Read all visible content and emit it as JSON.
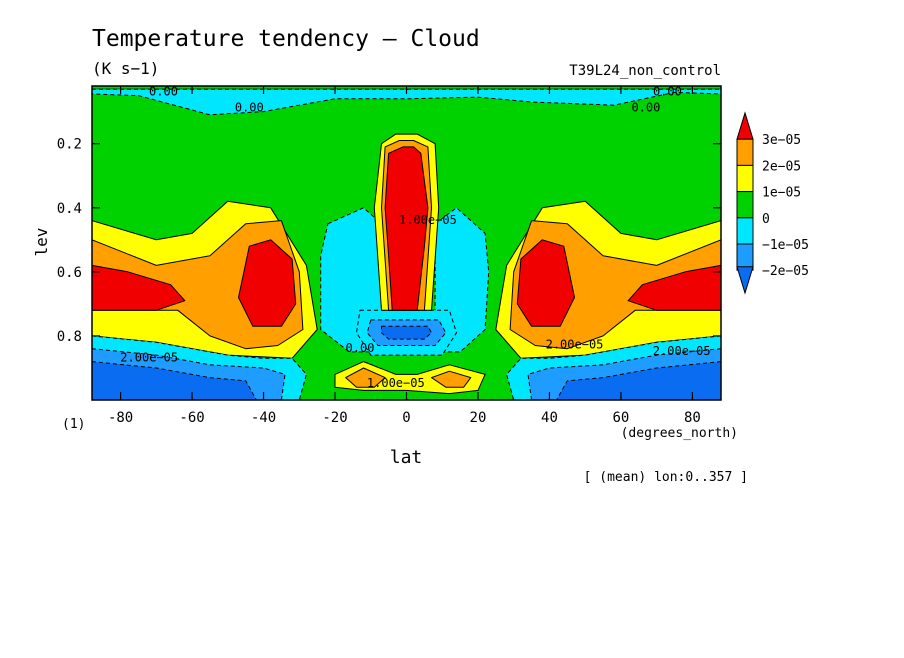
{
  "chart_data": {
    "type": "heatmap",
    "title": "Temperature tendency — Cloud",
    "units": "(K s−1)",
    "run_label": "T39L24_non_control",
    "xlabel": "lat",
    "x_units": "(degrees_north)",
    "ylabel": "lev",
    "y_units": "(1)",
    "footnote": "[ (mean) lon:0..357 ]",
    "xlim": [
      -88,
      88
    ],
    "ylim": [
      1.0,
      0.02
    ],
    "x_ticks": [
      -80,
      -60,
      -40,
      -20,
      0,
      20,
      40,
      60,
      80
    ],
    "x_tick_labels": [
      "-80",
      "-60",
      "-40",
      "-20",
      "0",
      "20",
      "40",
      "60",
      "80"
    ],
    "y_ticks": [
      0.2,
      0.4,
      0.6,
      0.8
    ],
    "y_tick_labels": [
      "0.2",
      "0.4",
      "0.6",
      "0.8"
    ],
    "colorbar": {
      "levels": [
        -2e-05,
        -1e-05,
        0,
        1e-05,
        2e-05,
        3e-05
      ],
      "labels": [
        "−2e−05",
        "−1e−05",
        "0",
        "1e−05",
        "2e−05",
        "3e−05"
      ],
      "colors": [
        "#0a6cf0",
        "#1e9cff",
        "#00e6ff",
        "#00d200",
        "#ffff00",
        "#ff9f00",
        "#f00000"
      ]
    },
    "fill_colors": {
      "minus2": "#0a6cf0",
      "minus1": "#1e9cff",
      "zero_neg": "#00e6ff",
      "zero_pos": "#00d200",
      "plus1": "#ffff00",
      "plus2": "#ff9f00",
      "plus3": "#f00000"
    },
    "contour_labels": [
      {
        "text": "0.00",
        "lat": -68,
        "lev": 0.05
      },
      {
        "text": "0.00",
        "lat": -44,
        "lev": 0.1
      },
      {
        "text": "0.00",
        "lat": 73,
        "lev": 0.05
      },
      {
        "text": "0.00",
        "lat": 67,
        "lev": 0.1
      },
      {
        "text": "0.00",
        "lat": -13,
        "lev": 0.85
      },
      {
        "text": "1.00e−05",
        "lat": -3,
        "lev": 0.96
      },
      {
        "text": "2.00e−05",
        "lat": 47,
        "lev": 0.84
      },
      {
        "text": "2.00e−05",
        "lat": 77,
        "lev": 0.86
      },
      {
        "text": "2.00e−05",
        "lat": -72,
        "lev": 0.88
      },
      {
        "text": "1.00e−05",
        "lat": 6,
        "lev": 0.45
      }
    ],
    "regions": [
      {
        "name": "top-thin-green",
        "class": "zero_pos",
        "pts": [
          [
            -88,
            0.02
          ],
          [
            88,
            0.02
          ],
          [
            88,
            0.03
          ],
          [
            -88,
            0.03
          ]
        ]
      },
      {
        "name": "top-cyan",
        "class": "zero_neg",
        "pts": [
          [
            -88,
            0.03
          ],
          [
            88,
            0.03
          ],
          [
            88,
            0.045
          ],
          [
            75,
            0.04
          ],
          [
            58,
            0.08
          ],
          [
            35,
            0.07
          ],
          [
            20,
            0.055
          ],
          [
            0,
            0.06
          ],
          [
            -20,
            0.06
          ],
          [
            -40,
            0.1
          ],
          [
            -55,
            0.11
          ],
          [
            -75,
            0.05
          ],
          [
            -88,
            0.045
          ]
        ]
      },
      {
        "name": "sh-yellow",
        "class": "plus1",
        "pts": [
          [
            -88,
            0.44
          ],
          [
            -70,
            0.5
          ],
          [
            -60,
            0.48
          ],
          [
            -50,
            0.38
          ],
          [
            -38,
            0.4
          ],
          [
            -28,
            0.58
          ],
          [
            -25,
            0.78
          ],
          [
            -32,
            0.87
          ],
          [
            -50,
            0.86
          ],
          [
            -70,
            0.82
          ],
          [
            -88,
            0.8
          ]
        ]
      },
      {
        "name": "sh-orange",
        "class": "plus2",
        "pts": [
          [
            -88,
            0.5
          ],
          [
            -70,
            0.58
          ],
          [
            -55,
            0.55
          ],
          [
            -45,
            0.45
          ],
          [
            -35,
            0.44
          ],
          [
            -30,
            0.6
          ],
          [
            -29,
            0.78
          ],
          [
            -36,
            0.83
          ],
          [
            -45,
            0.84
          ],
          [
            -55,
            0.8
          ],
          [
            -64,
            0.72
          ],
          [
            -75,
            0.72
          ],
          [
            -88,
            0.72
          ]
        ]
      },
      {
        "name": "sh-red-left",
        "class": "plus3",
        "pts": [
          [
            -88,
            0.58
          ],
          [
            -78,
            0.6
          ],
          [
            -66,
            0.64
          ],
          [
            -62,
            0.69
          ],
          [
            -70,
            0.72
          ],
          [
            -80,
            0.72
          ],
          [
            -88,
            0.72
          ]
        ]
      },
      {
        "name": "sh-red-right",
        "class": "plus3",
        "pts": [
          [
            -44,
            0.52
          ],
          [
            -38,
            0.5
          ],
          [
            -32,
            0.56
          ],
          [
            -31,
            0.7
          ],
          [
            -35,
            0.77
          ],
          [
            -43,
            0.77
          ],
          [
            -47,
            0.68
          ]
        ]
      },
      {
        "name": "nh-yellow",
        "class": "plus1",
        "pts": [
          [
            88,
            0.44
          ],
          [
            70,
            0.5
          ],
          [
            60,
            0.48
          ],
          [
            50,
            0.38
          ],
          [
            38,
            0.4
          ],
          [
            28,
            0.58
          ],
          [
            25,
            0.78
          ],
          [
            32,
            0.87
          ],
          [
            50,
            0.86
          ],
          [
            70,
            0.82
          ],
          [
            88,
            0.8
          ]
        ]
      },
      {
        "name": "nh-orange",
        "class": "plus2",
        "pts": [
          [
            88,
            0.5
          ],
          [
            70,
            0.58
          ],
          [
            55,
            0.55
          ],
          [
            45,
            0.45
          ],
          [
            35,
            0.44
          ],
          [
            30,
            0.6
          ],
          [
            29,
            0.78
          ],
          [
            36,
            0.83
          ],
          [
            45,
            0.84
          ],
          [
            55,
            0.8
          ],
          [
            64,
            0.72
          ],
          [
            75,
            0.72
          ],
          [
            88,
            0.72
          ]
        ]
      },
      {
        "name": "nh-red-right",
        "class": "plus3",
        "pts": [
          [
            88,
            0.58
          ],
          [
            78,
            0.6
          ],
          [
            66,
            0.64
          ],
          [
            62,
            0.69
          ],
          [
            70,
            0.72
          ],
          [
            80,
            0.72
          ],
          [
            88,
            0.72
          ]
        ]
      },
      {
        "name": "nh-red-left",
        "class": "plus3",
        "pts": [
          [
            44,
            0.52
          ],
          [
            38,
            0.5
          ],
          [
            32,
            0.56
          ],
          [
            31,
            0.7
          ],
          [
            35,
            0.77
          ],
          [
            43,
            0.77
          ],
          [
            47,
            0.68
          ]
        ]
      },
      {
        "name": "left-cyan-mid",
        "class": "zero_neg",
        "pts": [
          [
            -22,
            0.45
          ],
          [
            -12,
            0.4
          ],
          [
            -7,
            0.45
          ],
          [
            -7,
            0.85
          ],
          [
            -16,
            0.85
          ],
          [
            -24,
            0.78
          ],
          [
            -24,
            0.55
          ]
        ]
      },
      {
        "name": "right-cyan-mid",
        "class": "zero_neg",
        "pts": [
          [
            8,
            0.45
          ],
          [
            14,
            0.4
          ],
          [
            22,
            0.48
          ],
          [
            23,
            0.6
          ],
          [
            22,
            0.78
          ],
          [
            15,
            0.85
          ],
          [
            8,
            0.85
          ]
        ]
      },
      {
        "name": "center-cyan",
        "class": "zero_neg",
        "pts": [
          [
            -13,
            0.72
          ],
          [
            12,
            0.72
          ],
          [
            14,
            0.79
          ],
          [
            10,
            0.86
          ],
          [
            -10,
            0.86
          ],
          [
            -14,
            0.79
          ]
        ]
      },
      {
        "name": "center-blue",
        "class": "minus1",
        "pts": [
          [
            -10,
            0.75
          ],
          [
            9,
            0.75
          ],
          [
            11,
            0.79
          ],
          [
            8,
            0.83
          ],
          [
            -8,
            0.83
          ],
          [
            -11,
            0.79
          ]
        ]
      },
      {
        "name": "center-dark",
        "class": "minus2",
        "pts": [
          [
            -7,
            0.77
          ],
          [
            6,
            0.77
          ],
          [
            7,
            0.79
          ],
          [
            5,
            0.81
          ],
          [
            -5,
            0.81
          ],
          [
            -7,
            0.79
          ]
        ]
      },
      {
        "name": "central-yellow",
        "class": "plus1",
        "pts": [
          [
            -7,
            0.2
          ],
          [
            -3,
            0.17
          ],
          [
            3,
            0.17
          ],
          [
            8,
            0.2
          ],
          [
            9,
            0.4
          ],
          [
            7,
            0.72
          ],
          [
            -7,
            0.72
          ],
          [
            -9,
            0.4
          ]
        ]
      },
      {
        "name": "central-orange",
        "class": "plus2",
        "pts": [
          [
            -6,
            0.21
          ],
          [
            -2,
            0.19
          ],
          [
            2,
            0.19
          ],
          [
            6,
            0.21
          ],
          [
            7,
            0.4
          ],
          [
            5,
            0.72
          ],
          [
            -5,
            0.72
          ],
          [
            -7,
            0.4
          ]
        ]
      },
      {
        "name": "central-red",
        "class": "plus3",
        "pts": [
          [
            -5,
            0.23
          ],
          [
            -1,
            0.21
          ],
          [
            2,
            0.21
          ],
          [
            4,
            0.23
          ],
          [
            6,
            0.4
          ],
          [
            5,
            0.52
          ],
          [
            3,
            0.72
          ],
          [
            -4,
            0.72
          ],
          [
            -5,
            0.55
          ],
          [
            -6,
            0.4
          ]
        ]
      },
      {
        "name": "bottom-yellow",
        "class": "plus1",
        "pts": [
          [
            -20,
            0.92
          ],
          [
            -12,
            0.88
          ],
          [
            -3,
            0.92
          ],
          [
            3,
            0.92
          ],
          [
            12,
            0.89
          ],
          [
            22,
            0.92
          ],
          [
            20,
            0.97
          ],
          [
            12,
            0.98
          ],
          [
            0,
            0.97
          ],
          [
            -12,
            0.97
          ],
          [
            -20,
            0.96
          ]
        ]
      },
      {
        "name": "bottom-orange-left",
        "class": "plus2",
        "pts": [
          [
            -17,
            0.93
          ],
          [
            -12,
            0.9
          ],
          [
            -6,
            0.93
          ],
          [
            -9,
            0.96
          ],
          [
            -14,
            0.96
          ]
        ]
      },
      {
        "name": "bottom-orange-right",
        "class": "plus2",
        "pts": [
          [
            7,
            0.93
          ],
          [
            12,
            0.91
          ],
          [
            18,
            0.93
          ],
          [
            16,
            0.96
          ],
          [
            11,
            0.96
          ]
        ]
      },
      {
        "name": "sh-bottom-cyan",
        "class": "zero_neg",
        "pts": [
          [
            -88,
            0.8
          ],
          [
            -70,
            0.82
          ],
          [
            -50,
            0.86
          ],
          [
            -40,
            0.87
          ],
          [
            -32,
            0.87
          ],
          [
            -28,
            0.92
          ],
          [
            -30,
            1.0
          ],
          [
            -88,
            1.0
          ]
        ]
      },
      {
        "name": "sh-bottom-blue",
        "class": "minus1",
        "pts": [
          [
            -88,
            0.84
          ],
          [
            -70,
            0.86
          ],
          [
            -55,
            0.89
          ],
          [
            -40,
            0.9
          ],
          [
            -34,
            0.92
          ],
          [
            -35,
            1.0
          ],
          [
            -88,
            1.0
          ]
        ]
      },
      {
        "name": "sh-bottom-dark",
        "class": "minus2",
        "pts": [
          [
            -88,
            0.88
          ],
          [
            -70,
            0.9
          ],
          [
            -55,
            0.93
          ],
          [
            -45,
            0.94
          ],
          [
            -42,
            1.0
          ],
          [
            -88,
            1.0
          ]
        ]
      },
      {
        "name": "nh-bottom-cyan",
        "class": "zero_neg",
        "pts": [
          [
            88,
            0.8
          ],
          [
            70,
            0.82
          ],
          [
            50,
            0.86
          ],
          [
            40,
            0.87
          ],
          [
            32,
            0.87
          ],
          [
            28,
            0.92
          ],
          [
            30,
            1.0
          ],
          [
            88,
            1.0
          ]
        ]
      },
      {
        "name": "nh-bottom-blue",
        "class": "minus1",
        "pts": [
          [
            88,
            0.84
          ],
          [
            70,
            0.86
          ],
          [
            55,
            0.89
          ],
          [
            40,
            0.9
          ],
          [
            34,
            0.92
          ],
          [
            35,
            1.0
          ],
          [
            88,
            1.0
          ]
        ]
      },
      {
        "name": "nh-bottom-dark",
        "class": "minus2",
        "pts": [
          [
            88,
            0.88
          ],
          [
            70,
            0.9
          ],
          [
            55,
            0.93
          ],
          [
            45,
            0.94
          ],
          [
            42,
            1.0
          ],
          [
            88,
            1.0
          ]
        ]
      }
    ]
  }
}
